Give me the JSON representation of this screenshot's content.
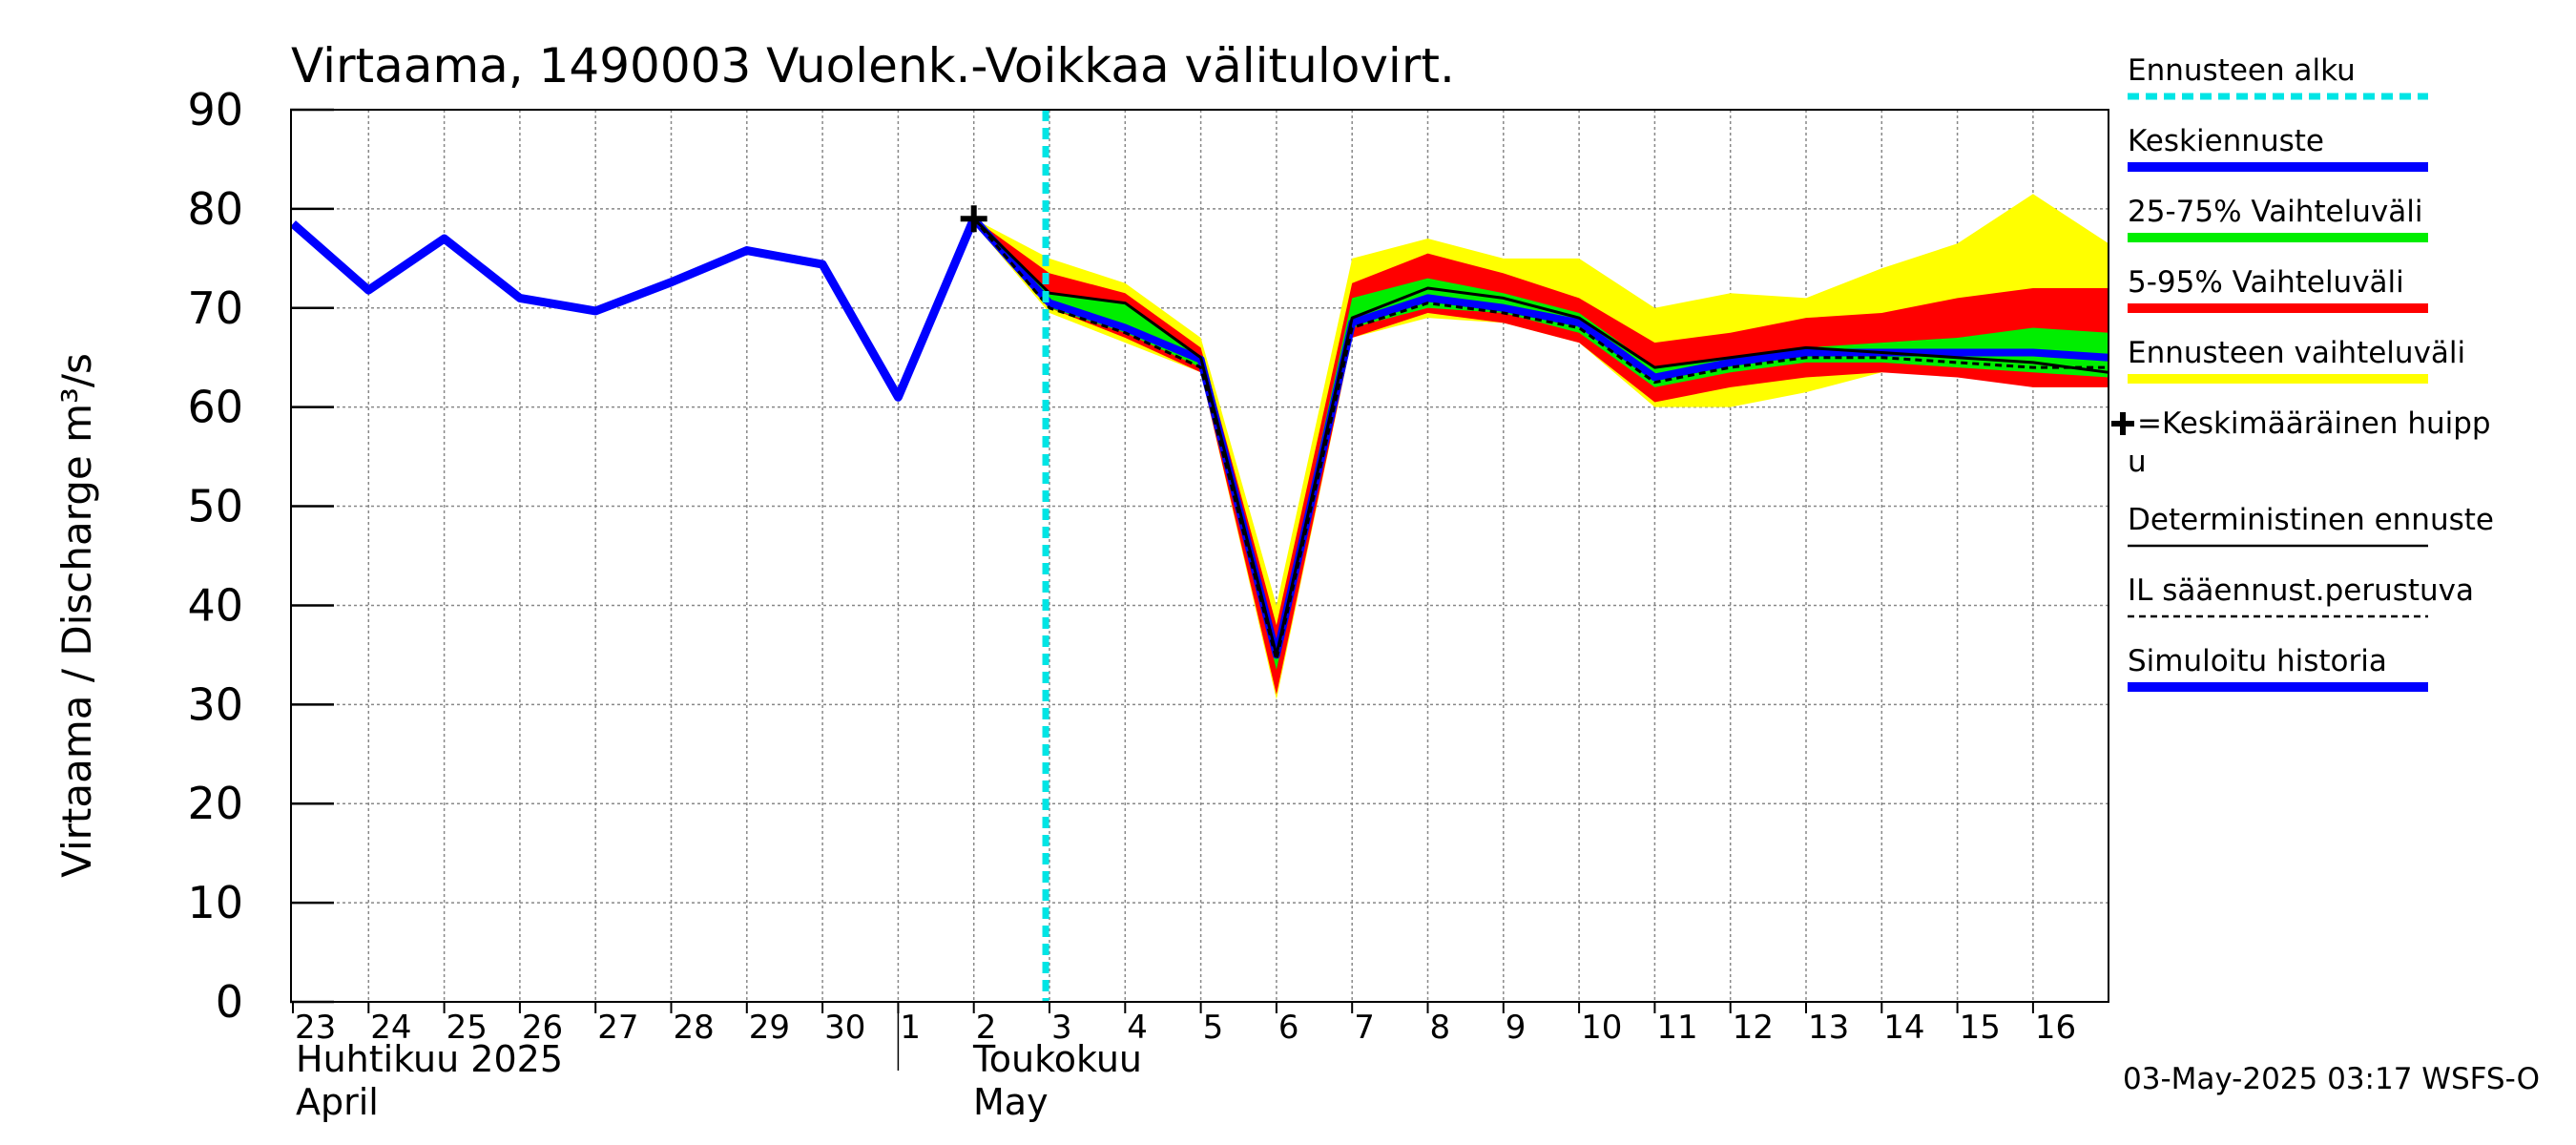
{
  "chart_data": {
    "type": "line",
    "title": "Virtaama, 1490003 Vuolenk.-Voikkaa välitulovirt.",
    "ylabel": "Virtaama / Discharge    m³/s",
    "ylim": [
      0,
      90
    ],
    "yticks": [
      0,
      10,
      20,
      30,
      40,
      50,
      60,
      70,
      80,
      90
    ],
    "x_days": [
      "23",
      "24",
      "25",
      "26",
      "27",
      "28",
      "29",
      "30",
      "1",
      "2",
      "3",
      "4",
      "5",
      "6",
      "7",
      "8",
      "9",
      "10",
      "11",
      "12",
      "13",
      "14",
      "15",
      "16"
    ],
    "months": [
      {
        "fi": "Huhtikuu  2025",
        "en": "April"
      },
      {
        "fi": "Toukokuu",
        "en": "May"
      }
    ],
    "forecast_start_index": 9.95,
    "mean_peak": {
      "index": 9,
      "value": 79
    },
    "series": [
      {
        "name": "Simuloitu historia",
        "color": "#0000ff",
        "x": [
          0,
          1,
          2,
          3,
          4,
          5,
          6,
          7,
          8,
          9
        ],
        "values": [
          78.5,
          71.8,
          77,
          71,
          69.7,
          72.6,
          75.8,
          74.4,
          61,
          79
        ]
      },
      {
        "name": "Keskiennuste",
        "color": "#0000ff",
        "x": [
          9,
          10,
          11,
          12,
          13,
          14,
          15,
          16,
          17,
          18,
          19,
          20,
          21,
          22,
          23,
          24
        ],
        "values": [
          79,
          70.5,
          68,
          64.8,
          35,
          68.5,
          71,
          70,
          68.5,
          63,
          64.5,
          65.5,
          65.5,
          65.5,
          65.5,
          65
        ]
      },
      {
        "name": "Deterministinen ennuste",
        "color": "#000000",
        "x": [
          9,
          10,
          11,
          12,
          13,
          14,
          15,
          16,
          17,
          18,
          19,
          20,
          21,
          22,
          23,
          24
        ],
        "values": [
          79,
          71.5,
          70.5,
          65,
          35,
          69,
          72,
          71,
          69,
          64,
          65,
          66,
          65.5,
          65,
          64.5,
          63.5
        ]
      },
      {
        "name": "IL sääennust.perustuva",
        "color": "#000000",
        "dash": true,
        "x": [
          9,
          10,
          11,
          12,
          13,
          14,
          15,
          16,
          17,
          18,
          19,
          20,
          21,
          22,
          23,
          24
        ],
        "values": [
          79,
          70,
          67.5,
          64,
          34.5,
          68,
          70.5,
          69.5,
          68,
          62.5,
          64,
          65,
          65,
          64.5,
          64,
          64
        ]
      }
    ],
    "bands": [
      {
        "name": "Ennusteen vaihteluväli",
        "color": "#ffff00",
        "x": [
          9,
          10,
          11,
          12,
          13,
          14,
          15,
          16,
          17,
          18,
          19,
          20,
          21,
          22,
          23,
          24
        ],
        "upper": [
          79,
          75,
          72.5,
          67,
          40,
          75,
          77,
          75,
          75,
          70,
          71.5,
          71,
          74,
          76.5,
          81.5,
          76.5
        ],
        "lower": [
          78.5,
          69.5,
          66.5,
          63.5,
          30.5,
          67,
          69,
          68.5,
          66.5,
          60,
          60,
          61.5,
          63.5,
          63.5,
          62,
          62
        ]
      },
      {
        "name": "5-95% Vaihteluväli",
        "color": "#ff0000",
        "x": [
          9,
          10,
          11,
          12,
          13,
          14,
          15,
          16,
          17,
          18,
          19,
          20,
          21,
          22,
          23,
          24
        ],
        "upper": [
          79,
          73.5,
          71.5,
          66,
          38,
          72.5,
          75.5,
          73.5,
          71,
          66.5,
          67.5,
          69,
          69.5,
          71,
          72,
          72
        ],
        "lower": [
          78.5,
          70,
          67,
          63.5,
          31,
          67,
          69.5,
          68.5,
          66.5,
          60.5,
          62,
          63,
          63.5,
          63,
          62,
          62
        ]
      },
      {
        "name": "25-75% Vaihteluväli",
        "color": "#00ee00",
        "x": [
          9,
          10,
          11,
          12,
          13,
          14,
          15,
          16,
          17,
          18,
          19,
          20,
          21,
          22,
          23,
          24
        ],
        "upper": [
          79,
          71.5,
          70.5,
          65,
          36,
          71,
          73,
          71.5,
          69.5,
          64,
          65,
          66,
          66.5,
          67,
          68,
          67.5
        ],
        "lower": [
          78.5,
          70,
          67.5,
          64,
          33.5,
          68,
          70,
          69.5,
          67.5,
          62,
          63.5,
          64.5,
          64.5,
          64,
          63.5,
          63
        ]
      }
    ]
  },
  "legend": {
    "items": [
      {
        "label": "Ennusteen alku",
        "color": "#00e5e5",
        "style": "dashed"
      },
      {
        "label": "Keskiennuste",
        "color": "#0000ff",
        "style": "thick"
      },
      {
        "label": "25-75% Vaihteluväli",
        "color": "#00ee00",
        "style": "thick"
      },
      {
        "label": "5-95% Vaihteluväli",
        "color": "#ff0000",
        "style": "thick"
      },
      {
        "label": "Ennusteen vaihteluväli",
        "color": "#ffff00",
        "style": "thick"
      },
      {
        "label": "=Keskimääräinen huipp",
        "label2": "u",
        "style": "marker"
      },
      {
        "label": "Deterministinen ennuste",
        "color": "#000000",
        "style": "thin"
      },
      {
        "label": "IL sääennust.perustuva",
        "color": "#000000",
        "style": "dotted"
      },
      {
        "label": "Simuloitu historia",
        "color": "#0000ff",
        "style": "thick"
      }
    ]
  },
  "footer": {
    "timestamp": "03-May-2025 03:17 WSFS-O"
  }
}
